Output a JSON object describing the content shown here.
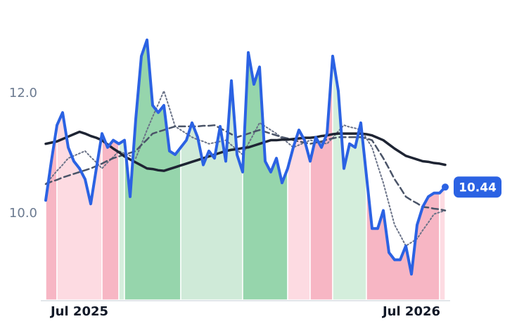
{
  "chart_data": {
    "type": "line",
    "categories": [
      null,
      null,
      null,
      null,
      null,
      null,
      "Jul 2025",
      null,
      null,
      null,
      null,
      null,
      null,
      null,
      null,
      null,
      null,
      null,
      null,
      null,
      null,
      null,
      null,
      null,
      null,
      null,
      null,
      null,
      null,
      null,
      null,
      null,
      null,
      null,
      null,
      null,
      null,
      null,
      null,
      null,
      null,
      null,
      null,
      null,
      null,
      null,
      null,
      null,
      null,
      null,
      null,
      null,
      null,
      null,
      null,
      null,
      null,
      null,
      null,
      null,
      null,
      null,
      null,
      null,
      null,
      "Jul 2026",
      null,
      null,
      null,
      null,
      null,
      null
    ],
    "series": [
      {
        "color": "#2b62e3",
        "line_style": "solid",
        "values": [
          10.22,
          10.87,
          11.47,
          11.68,
          11.1,
          10.87,
          10.75,
          10.57,
          10.16,
          10.75,
          11.33,
          11.1,
          11.22,
          11.16,
          11.22,
          10.28,
          11.57,
          12.62,
          12.89,
          11.8,
          11.68,
          11.8,
          11.04,
          10.98,
          11.1,
          11.22,
          11.51,
          11.27,
          10.81,
          11.04,
          10.92,
          11.45,
          10.87,
          12.21,
          10.98,
          10.69,
          12.68,
          12.15,
          12.44,
          10.87,
          10.69,
          10.92,
          10.51,
          10.75,
          11.1,
          11.39,
          11.22,
          10.87,
          11.27,
          11.1,
          11.33,
          12.62,
          12.04,
          10.75,
          11.16,
          11.1,
          11.51,
          10.63,
          9.75,
          9.75,
          10.05,
          9.35,
          9.23,
          9.23,
          9.46,
          8.99,
          9.81,
          10.11,
          10.28,
          10.34,
          10.34,
          10.44
        ]
      },
      {
        "color": "#1e2433",
        "line_style": "solid",
        "values": [
          11.16,
          11.18,
          11.2,
          11.24,
          11.28,
          11.32,
          11.36,
          11.33,
          11.29,
          11.26,
          11.22,
          11.15,
          11.08,
          11.02,
          10.95,
          10.9,
          10.85,
          10.8,
          10.75,
          10.74,
          10.72,
          10.71,
          10.74,
          10.77,
          10.8,
          10.83,
          10.86,
          10.89,
          10.92,
          10.95,
          10.98,
          11.01,
          11.04,
          11.06,
          11.07,
          11.09,
          11.1,
          11.13,
          11.16,
          11.19,
          11.22,
          11.22,
          11.23,
          11.23,
          11.24,
          11.25,
          11.26,
          11.26,
          11.27,
          11.29,
          11.3,
          11.32,
          11.33,
          11.33,
          11.33,
          11.33,
          11.33,
          11.32,
          11.3,
          11.26,
          11.22,
          11.15,
          11.08,
          11.02,
          10.96,
          10.93,
          10.9,
          10.87,
          10.86,
          10.84,
          10.83,
          10.81
        ]
      },
      {
        "color": "#4a5468",
        "line_style": "dashed",
        "values": [
          10.49,
          10.53,
          10.56,
          10.6,
          10.63,
          10.66,
          10.69,
          10.72,
          10.75,
          10.79,
          10.83,
          10.88,
          10.92,
          10.95,
          10.98,
          11.01,
          11.04,
          11.14,
          11.23,
          11.33,
          11.36,
          11.39,
          11.42,
          11.45,
          11.45,
          11.45,
          11.45,
          11.45,
          11.46,
          11.46,
          11.47,
          11.42,
          11.37,
          11.32,
          11.27,
          11.3,
          11.33,
          11.36,
          11.39,
          11.36,
          11.33,
          11.3,
          11.27,
          11.25,
          11.22,
          11.2,
          11.18,
          11.16,
          11.18,
          11.2,
          11.23,
          11.25,
          11.27,
          11.27,
          11.27,
          11.27,
          11.27,
          11.25,
          11.22,
          11.07,
          10.92,
          10.75,
          10.57,
          10.43,
          10.28,
          10.22,
          10.17,
          10.11,
          10.1,
          10.08,
          10.07,
          10.05
        ]
      },
      {
        "color": "#6b7388",
        "line_style": "dotted",
        "values": [
          10.49,
          10.6,
          10.71,
          10.81,
          10.92,
          10.96,
          11.0,
          11.04,
          10.94,
          10.85,
          10.75,
          10.85,
          10.94,
          11.04,
          11.0,
          10.96,
          10.92,
          11.15,
          11.39,
          11.61,
          11.82,
          12.04,
          11.75,
          11.45,
          11.39,
          11.33,
          11.27,
          11.23,
          11.2,
          11.16,
          11.18,
          11.2,
          11.22,
          11.14,
          11.06,
          10.98,
          11.16,
          11.33,
          11.51,
          11.45,
          11.39,
          11.33,
          11.25,
          11.18,
          11.1,
          11.14,
          11.18,
          11.22,
          11.2,
          11.18,
          11.16,
          11.26,
          11.37,
          11.47,
          11.44,
          11.42,
          11.39,
          11.25,
          11.1,
          10.8,
          10.51,
          10.16,
          9.81,
          9.64,
          9.46,
          9.52,
          9.58,
          9.72,
          9.85,
          9.99,
          10.02,
          10.05
        ]
      }
    ],
    "bands": [
      {
        "start": 0,
        "end": 2,
        "color": "#f7b6c4"
      },
      {
        "start": 2,
        "end": 10,
        "color": "#fddbe2"
      },
      {
        "start": 10,
        "end": 13,
        "color": "#f7b6c4"
      },
      {
        "start": 13,
        "end": 14,
        "color": "#d4eedc"
      },
      {
        "start": 14,
        "end": 24,
        "color": "#96d5ac"
      },
      {
        "start": 24,
        "end": 35,
        "color": "#cfead8"
      },
      {
        "start": 35,
        "end": 43,
        "color": "#96d5ac"
      },
      {
        "start": 43,
        "end": 47,
        "color": "#fddbe2"
      },
      {
        "start": 47,
        "end": 51,
        "color": "#f7b6c4"
      },
      {
        "start": 51,
        "end": 57,
        "color": "#d4eedc"
      },
      {
        "start": 57,
        "end": 70,
        "color": "#f7b6c4"
      },
      {
        "start": 70,
        "end": 71,
        "color": "#fddbe2"
      }
    ],
    "ylim": [
      8.56,
      13.32
    ],
    "yticks": [
      {
        "value": 10,
        "label": "10.0"
      },
      {
        "value": 12,
        "label": "12.0"
      }
    ],
    "grid": false
  }
}
